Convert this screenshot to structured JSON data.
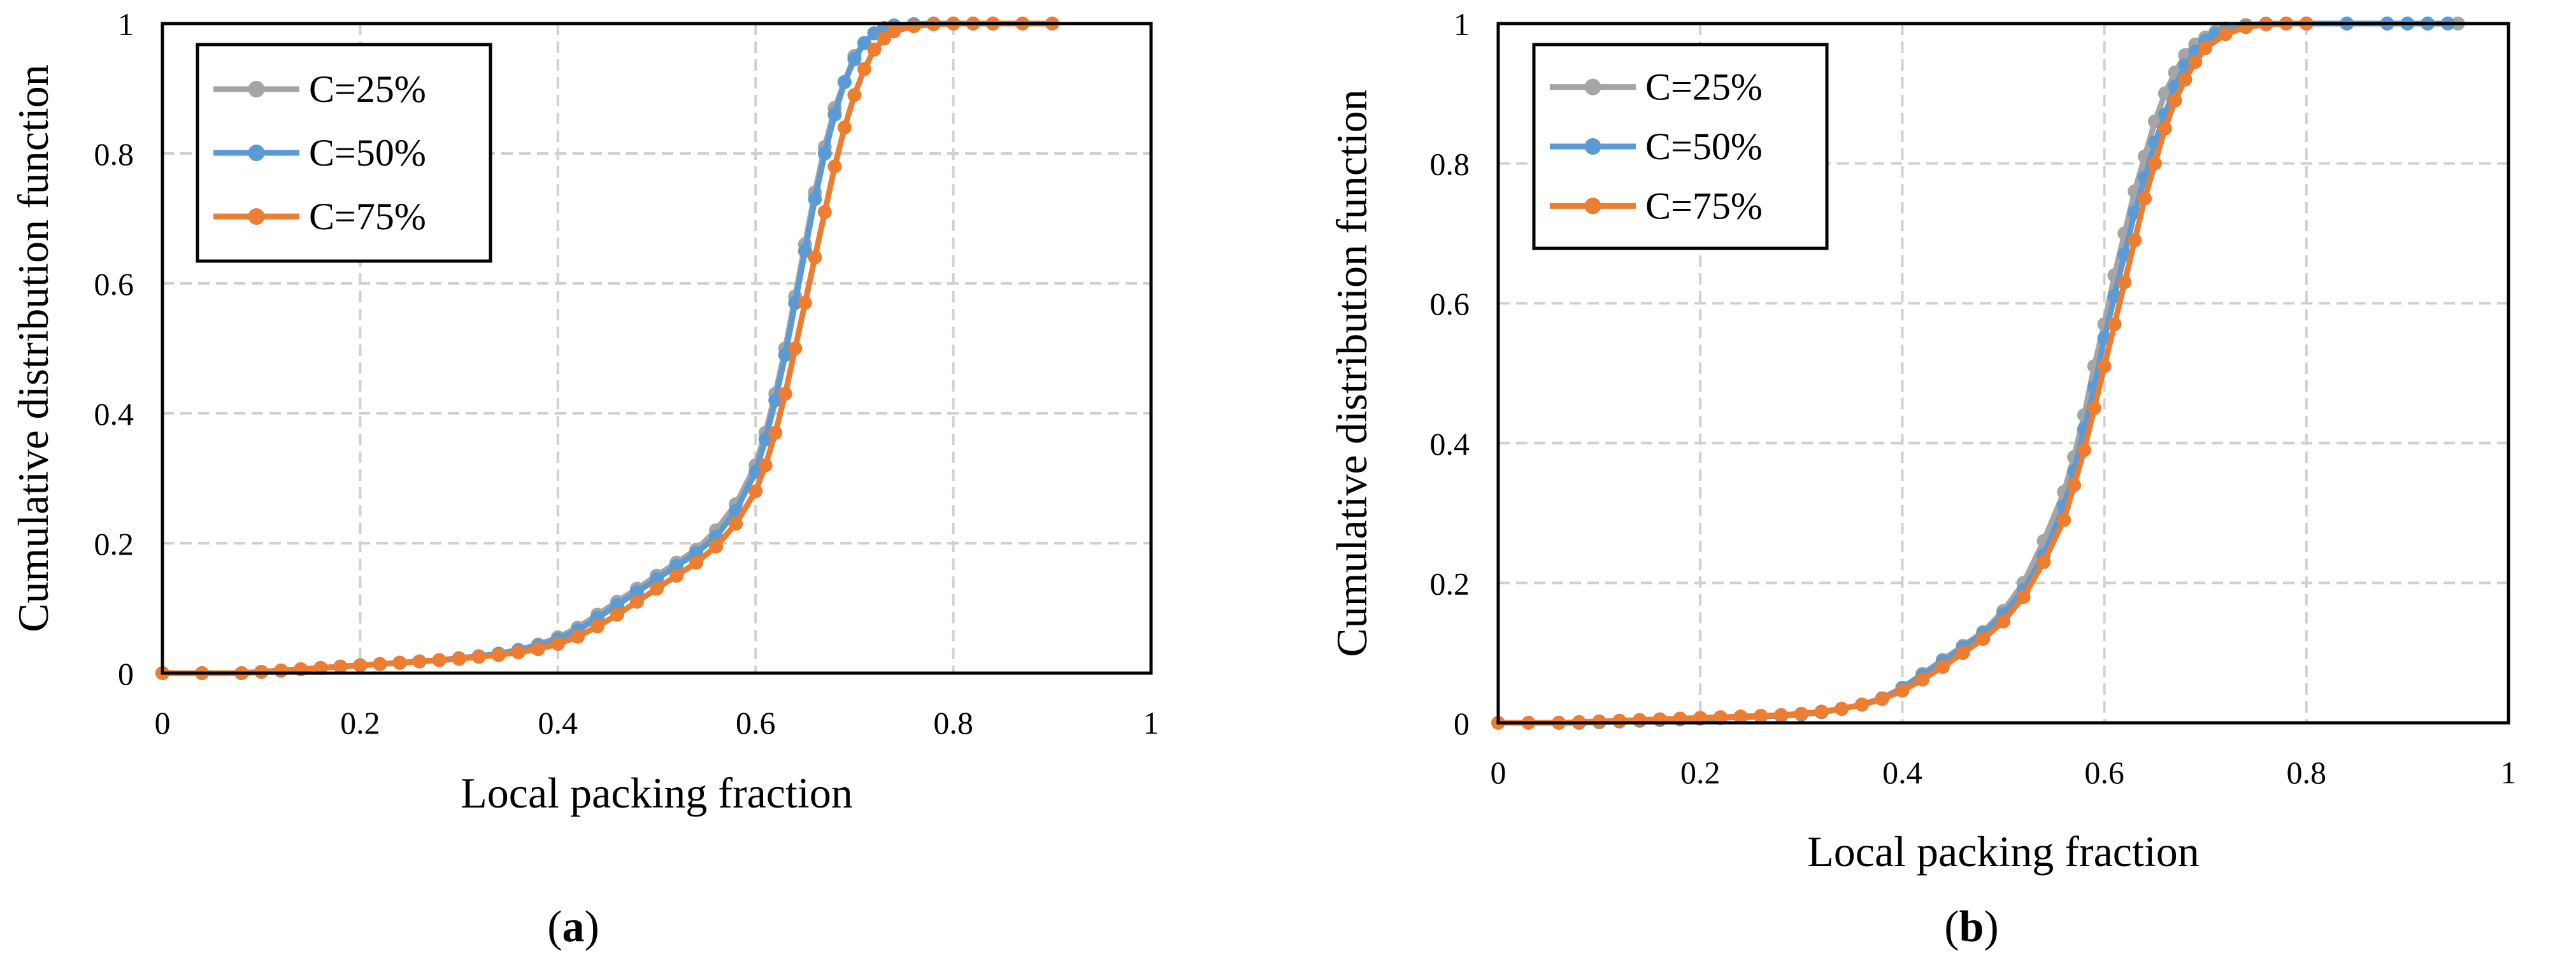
{
  "chart_data": [
    {
      "type": "line",
      "panel_label": "a",
      "xlabel": "Local packing fraction",
      "ylabel": "Cumulative distribution function",
      "xlim": [
        0,
        1
      ],
      "ylim": [
        0,
        1
      ],
      "xticks": [
        "0",
        "0.2",
        "0.4",
        "0.6",
        "0.8",
        "1"
      ],
      "yticks": [
        "0",
        "0.2",
        "0.4",
        "0.6",
        "0.8",
        "1"
      ],
      "grid": true,
      "legend_position": "top-left",
      "series": [
        {
          "name": "C=25%",
          "color": "#a5a5a5",
          "x": [
            0,
            0.04,
            0.08,
            0.1,
            0.12,
            0.14,
            0.16,
            0.18,
            0.2,
            0.22,
            0.24,
            0.26,
            0.28,
            0.3,
            0.32,
            0.34,
            0.36,
            0.38,
            0.4,
            0.42,
            0.44,
            0.46,
            0.48,
            0.5,
            0.52,
            0.54,
            0.56,
            0.58,
            0.6,
            0.61,
            0.62,
            0.63,
            0.64,
            0.65,
            0.66,
            0.67,
            0.68,
            0.69,
            0.7,
            0.71,
            0.72,
            0.73,
            0.74,
            0.76,
            0.78,
            0.8,
            0.82,
            0.84
          ],
          "y": [
            0,
            0,
            0,
            0.002,
            0.004,
            0.006,
            0.008,
            0.01,
            0.012,
            0.014,
            0.016,
            0.018,
            0.02,
            0.023,
            0.026,
            0.03,
            0.036,
            0.044,
            0.055,
            0.07,
            0.09,
            0.11,
            0.13,
            0.15,
            0.17,
            0.19,
            0.22,
            0.26,
            0.32,
            0.37,
            0.43,
            0.5,
            0.58,
            0.66,
            0.74,
            0.81,
            0.87,
            0.91,
            0.95,
            0.97,
            0.985,
            0.993,
            0.997,
            0.999,
            1,
            1,
            1,
            1
          ]
        },
        {
          "name": "C=50%",
          "color": "#5b9bd5",
          "x": [
            0,
            0.04,
            0.08,
            0.1,
            0.12,
            0.14,
            0.16,
            0.18,
            0.2,
            0.22,
            0.24,
            0.26,
            0.28,
            0.3,
            0.32,
            0.34,
            0.36,
            0.38,
            0.4,
            0.42,
            0.44,
            0.46,
            0.48,
            0.5,
            0.52,
            0.54,
            0.56,
            0.58,
            0.6,
            0.61,
            0.62,
            0.63,
            0.64,
            0.65,
            0.66,
            0.67,
            0.68,
            0.69,
            0.7,
            0.71,
            0.72,
            0.73,
            0.74,
            0.76,
            0.78,
            0.8,
            0.82
          ],
          "y": [
            0,
            0,
            0,
            0.002,
            0.004,
            0.006,
            0.008,
            0.01,
            0.012,
            0.014,
            0.016,
            0.018,
            0.02,
            0.023,
            0.026,
            0.03,
            0.035,
            0.042,
            0.052,
            0.066,
            0.085,
            0.105,
            0.125,
            0.145,
            0.165,
            0.185,
            0.21,
            0.25,
            0.31,
            0.36,
            0.42,
            0.49,
            0.57,
            0.65,
            0.73,
            0.8,
            0.86,
            0.91,
            0.945,
            0.97,
            0.985,
            0.993,
            0.997,
            0.999,
            1,
            1,
            1
          ]
        },
        {
          "name": "C=75%",
          "color": "#ed7d31",
          "x": [
            0,
            0.04,
            0.08,
            0.1,
            0.12,
            0.14,
            0.16,
            0.18,
            0.2,
            0.22,
            0.24,
            0.26,
            0.28,
            0.3,
            0.32,
            0.34,
            0.36,
            0.38,
            0.4,
            0.42,
            0.44,
            0.46,
            0.48,
            0.5,
            0.52,
            0.54,
            0.56,
            0.58,
            0.6,
            0.61,
            0.62,
            0.63,
            0.64,
            0.65,
            0.66,
            0.67,
            0.68,
            0.69,
            0.7,
            0.71,
            0.72,
            0.73,
            0.74,
            0.76,
            0.78,
            0.8,
            0.82,
            0.84,
            0.87,
            0.9
          ],
          "y": [
            0,
            0,
            0,
            0.002,
            0.004,
            0.006,
            0.008,
            0.01,
            0.012,
            0.014,
            0.016,
            0.018,
            0.02,
            0.022,
            0.025,
            0.028,
            0.032,
            0.037,
            0.045,
            0.056,
            0.072,
            0.09,
            0.11,
            0.13,
            0.15,
            0.17,
            0.195,
            0.23,
            0.28,
            0.32,
            0.37,
            0.43,
            0.5,
            0.57,
            0.64,
            0.71,
            0.78,
            0.84,
            0.89,
            0.93,
            0.96,
            0.977,
            0.988,
            0.996,
            0.999,
            1,
            1,
            1,
            1,
            1
          ]
        }
      ]
    },
    {
      "type": "line",
      "panel_label": "b",
      "xlabel": "Local packing fraction",
      "ylabel": "Cumulative distribution function",
      "xlim": [
        0,
        1
      ],
      "ylim": [
        0,
        1
      ],
      "xticks": [
        "0",
        "0.2",
        "0.4",
        "0.6",
        "0.8",
        "1"
      ],
      "yticks": [
        "0",
        "0.2",
        "0.4",
        "0.6",
        "0.8",
        "1"
      ],
      "grid": true,
      "legend_position": "top-left",
      "series": [
        {
          "name": "C=25%",
          "color": "#a5a5a5",
          "x": [
            0.06,
            0.08,
            0.1,
            0.12,
            0.14,
            0.16,
            0.18,
            0.2,
            0.22,
            0.24,
            0.26,
            0.28,
            0.3,
            0.32,
            0.34,
            0.36,
            0.38,
            0.4,
            0.42,
            0.44,
            0.46,
            0.48,
            0.5,
            0.52,
            0.54,
            0.56,
            0.57,
            0.58,
            0.59,
            0.6,
            0.61,
            0.62,
            0.63,
            0.64,
            0.65,
            0.66,
            0.67,
            0.68,
            0.69,
            0.7,
            0.71,
            0.72,
            0.74,
            0.76,
            0.78,
            0.8,
            0.84,
            0.88,
            0.92,
            0.95
          ],
          "y": [
            0,
            0,
            0.001,
            0.002,
            0.003,
            0.004,
            0.005,
            0.006,
            0.007,
            0.008,
            0.009,
            0.01,
            0.012,
            0.015,
            0.02,
            0.026,
            0.035,
            0.05,
            0.07,
            0.09,
            0.11,
            0.13,
            0.16,
            0.2,
            0.26,
            0.33,
            0.38,
            0.44,
            0.51,
            0.57,
            0.64,
            0.7,
            0.76,
            0.81,
            0.86,
            0.9,
            0.93,
            0.955,
            0.97,
            0.98,
            0.988,
            0.993,
            0.998,
            1,
            1,
            1,
            1,
            1,
            1,
            1
          ]
        },
        {
          "name": "C=50%",
          "color": "#5b9bd5",
          "x": [
            0.06,
            0.08,
            0.1,
            0.12,
            0.14,
            0.16,
            0.18,
            0.2,
            0.22,
            0.24,
            0.26,
            0.28,
            0.3,
            0.32,
            0.34,
            0.36,
            0.38,
            0.4,
            0.42,
            0.44,
            0.46,
            0.48,
            0.5,
            0.52,
            0.54,
            0.56,
            0.57,
            0.58,
            0.59,
            0.6,
            0.61,
            0.62,
            0.63,
            0.64,
            0.65,
            0.66,
            0.67,
            0.68,
            0.69,
            0.7,
            0.71,
            0.72,
            0.74,
            0.76,
            0.78,
            0.8,
            0.84,
            0.88,
            0.9,
            0.92,
            0.94
          ],
          "y": [
            0,
            0,
            0.001,
            0.002,
            0.003,
            0.004,
            0.005,
            0.006,
            0.007,
            0.008,
            0.009,
            0.01,
            0.012,
            0.015,
            0.02,
            0.026,
            0.035,
            0.05,
            0.068,
            0.088,
            0.108,
            0.128,
            0.155,
            0.19,
            0.24,
            0.31,
            0.36,
            0.42,
            0.48,
            0.55,
            0.61,
            0.67,
            0.73,
            0.78,
            0.83,
            0.87,
            0.91,
            0.94,
            0.96,
            0.975,
            0.985,
            0.99,
            0.996,
            0.999,
            1,
            1,
            1,
            1,
            1,
            1,
            1
          ]
        },
        {
          "name": "C=75%",
          "color": "#ed7d31",
          "x": [
            0,
            0.03,
            0.06,
            0.08,
            0.1,
            0.12,
            0.14,
            0.16,
            0.18,
            0.2,
            0.22,
            0.24,
            0.26,
            0.28,
            0.3,
            0.32,
            0.34,
            0.36,
            0.38,
            0.4,
            0.42,
            0.44,
            0.46,
            0.48,
            0.5,
            0.52,
            0.54,
            0.56,
            0.57,
            0.58,
            0.59,
            0.6,
            0.61,
            0.62,
            0.63,
            0.64,
            0.65,
            0.66,
            0.67,
            0.68,
            0.69,
            0.7,
            0.72,
            0.74,
            0.76,
            0.78,
            0.8
          ],
          "y": [
            0,
            0,
            0,
            0.001,
            0.002,
            0.003,
            0.004,
            0.005,
            0.006,
            0.007,
            0.008,
            0.009,
            0.01,
            0.011,
            0.013,
            0.016,
            0.02,
            0.026,
            0.034,
            0.046,
            0.062,
            0.08,
            0.1,
            0.12,
            0.145,
            0.18,
            0.23,
            0.29,
            0.34,
            0.39,
            0.45,
            0.51,
            0.57,
            0.63,
            0.69,
            0.75,
            0.8,
            0.85,
            0.89,
            0.92,
            0.945,
            0.965,
            0.985,
            0.995,
            0.999,
            1,
            1
          ]
        }
      ]
    }
  ]
}
